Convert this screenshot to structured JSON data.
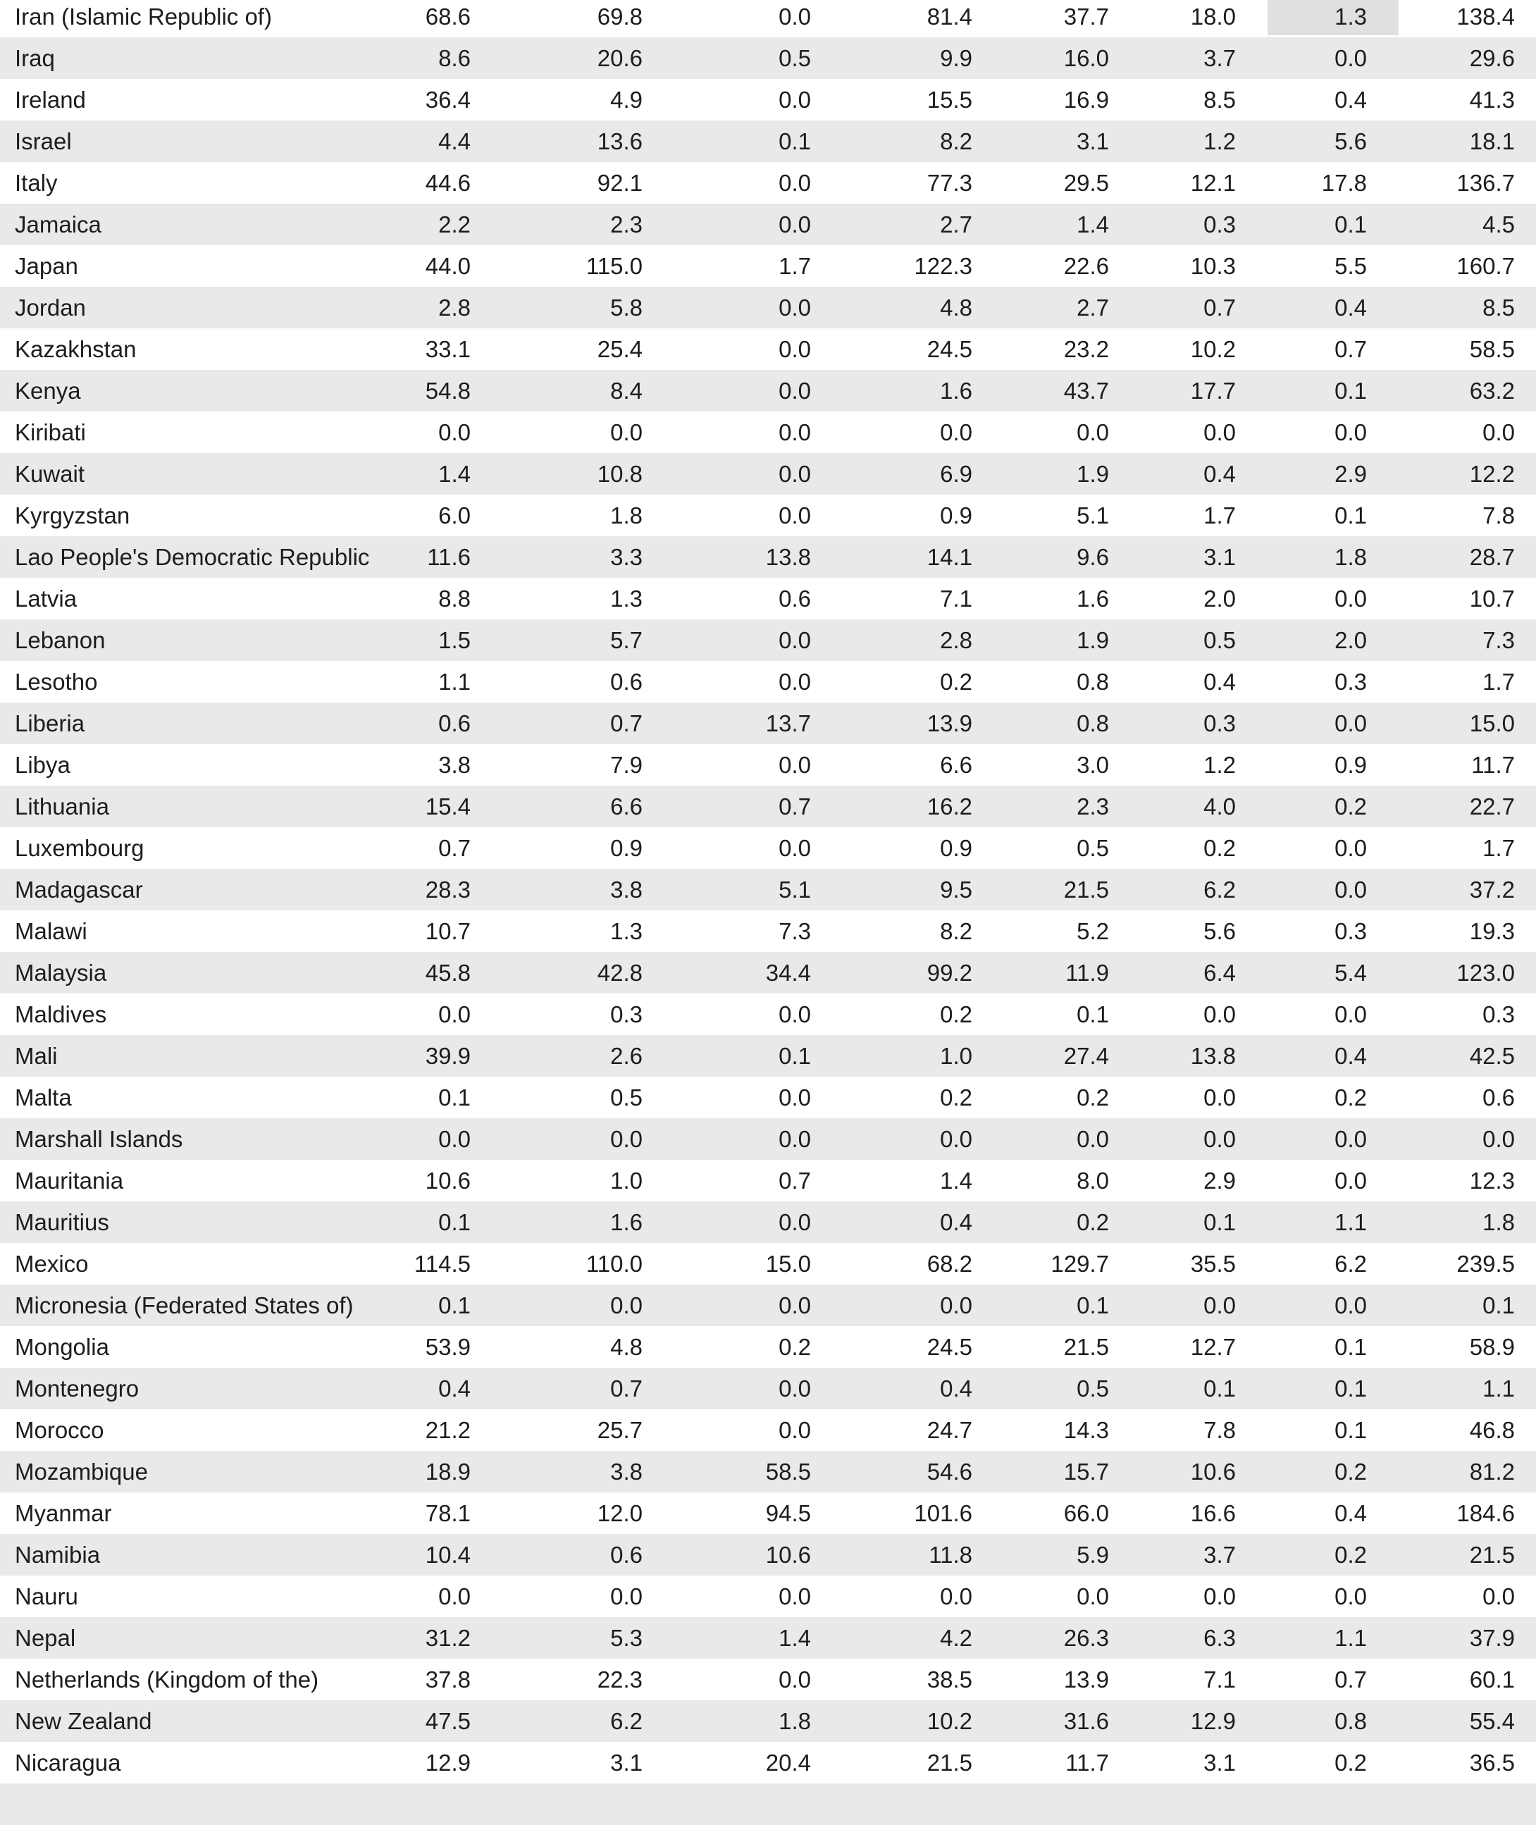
{
  "colors": {
    "row_plain": "#ffffff",
    "row_stripe": "#e9e9e9",
    "cell_highlight": "#e0e0e0",
    "text": "#1d1d1d"
  },
  "table": {
    "value_columns_count": 8,
    "highlighted_cell": {
      "row_index": 0,
      "value_col_index": 6,
      "value": "1.3"
    },
    "rows": [
      {
        "country": "Iran (Islamic Republic of)",
        "values": [
          "68.6",
          "69.8",
          "0.0",
          "81.4",
          "37.7",
          "18.0",
          "1.3",
          "138.4"
        ]
      },
      {
        "country": "Iraq",
        "values": [
          "8.6",
          "20.6",
          "0.5",
          "9.9",
          "16.0",
          "3.7",
          "0.0",
          "29.6"
        ]
      },
      {
        "country": "Ireland",
        "values": [
          "36.4",
          "4.9",
          "0.0",
          "15.5",
          "16.9",
          "8.5",
          "0.4",
          "41.3"
        ]
      },
      {
        "country": "Israel",
        "values": [
          "4.4",
          "13.6",
          "0.1",
          "8.2",
          "3.1",
          "1.2",
          "5.6",
          "18.1"
        ]
      },
      {
        "country": "Italy",
        "values": [
          "44.6",
          "92.1",
          "0.0",
          "77.3",
          "29.5",
          "12.1",
          "17.8",
          "136.7"
        ]
      },
      {
        "country": "Jamaica",
        "values": [
          "2.2",
          "2.3",
          "0.0",
          "2.7",
          "1.4",
          "0.3",
          "0.1",
          "4.5"
        ]
      },
      {
        "country": "Japan",
        "values": [
          "44.0",
          "115.0",
          "1.7",
          "122.3",
          "22.6",
          "10.3",
          "5.5",
          "160.7"
        ]
      },
      {
        "country": "Jordan",
        "values": [
          "2.8",
          "5.8",
          "0.0",
          "4.8",
          "2.7",
          "0.7",
          "0.4",
          "8.5"
        ]
      },
      {
        "country": "Kazakhstan",
        "values": [
          "33.1",
          "25.4",
          "0.0",
          "24.5",
          "23.2",
          "10.2",
          "0.7",
          "58.5"
        ]
      },
      {
        "country": "Kenya",
        "values": [
          "54.8",
          "8.4",
          "0.0",
          "1.6",
          "43.7",
          "17.7",
          "0.1",
          "63.2"
        ]
      },
      {
        "country": "Kiribati",
        "values": [
          "0.0",
          "0.0",
          "0.0",
          "0.0",
          "0.0",
          "0.0",
          "0.0",
          "0.0"
        ]
      },
      {
        "country": "Kuwait",
        "values": [
          "1.4",
          "10.8",
          "0.0",
          "6.9",
          "1.9",
          "0.4",
          "2.9",
          "12.2"
        ]
      },
      {
        "country": "Kyrgyzstan",
        "values": [
          "6.0",
          "1.8",
          "0.0",
          "0.9",
          "5.1",
          "1.7",
          "0.1",
          "7.8"
        ]
      },
      {
        "country": "Lao People's Democratic Republic",
        "values": [
          "11.6",
          "3.3",
          "13.8",
          "14.1",
          "9.6",
          "3.1",
          "1.8",
          "28.7"
        ]
      },
      {
        "country": "Latvia",
        "values": [
          "8.8",
          "1.3",
          "0.6",
          "7.1",
          "1.6",
          "2.0",
          "0.0",
          "10.7"
        ]
      },
      {
        "country": "Lebanon",
        "values": [
          "1.5",
          "5.7",
          "0.0",
          "2.8",
          "1.9",
          "0.5",
          "2.0",
          "7.3"
        ]
      },
      {
        "country": "Lesotho",
        "values": [
          "1.1",
          "0.6",
          "0.0",
          "0.2",
          "0.8",
          "0.4",
          "0.3",
          "1.7"
        ]
      },
      {
        "country": "Liberia",
        "values": [
          "0.6",
          "0.7",
          "13.7",
          "13.9",
          "0.8",
          "0.3",
          "0.0",
          "15.0"
        ]
      },
      {
        "country": "Libya",
        "values": [
          "3.8",
          "7.9",
          "0.0",
          "6.6",
          "3.0",
          "1.2",
          "0.9",
          "11.7"
        ]
      },
      {
        "country": "Lithuania",
        "values": [
          "15.4",
          "6.6",
          "0.7",
          "16.2",
          "2.3",
          "4.0",
          "0.2",
          "22.7"
        ]
      },
      {
        "country": "Luxembourg",
        "values": [
          "0.7",
          "0.9",
          "0.0",
          "0.9",
          "0.5",
          "0.2",
          "0.0",
          "1.7"
        ]
      },
      {
        "country": "Madagascar",
        "values": [
          "28.3",
          "3.8",
          "5.1",
          "9.5",
          "21.5",
          "6.2",
          "0.0",
          "37.2"
        ]
      },
      {
        "country": "Malawi",
        "values": [
          "10.7",
          "1.3",
          "7.3",
          "8.2",
          "5.2",
          "5.6",
          "0.3",
          "19.3"
        ]
      },
      {
        "country": "Malaysia",
        "values": [
          "45.8",
          "42.8",
          "34.4",
          "99.2",
          "11.9",
          "6.4",
          "5.4",
          "123.0"
        ]
      },
      {
        "country": "Maldives",
        "values": [
          "0.0",
          "0.3",
          "0.0",
          "0.2",
          "0.1",
          "0.0",
          "0.0",
          "0.3"
        ]
      },
      {
        "country": "Mali",
        "values": [
          "39.9",
          "2.6",
          "0.1",
          "1.0",
          "27.4",
          "13.8",
          "0.4",
          "42.5"
        ]
      },
      {
        "country": "Malta",
        "values": [
          "0.1",
          "0.5",
          "0.0",
          "0.2",
          "0.2",
          "0.0",
          "0.2",
          "0.6"
        ]
      },
      {
        "country": "Marshall Islands",
        "values": [
          "0.0",
          "0.0",
          "0.0",
          "0.0",
          "0.0",
          "0.0",
          "0.0",
          "0.0"
        ]
      },
      {
        "country": "Mauritania",
        "values": [
          "10.6",
          "1.0",
          "0.7",
          "1.4",
          "8.0",
          "2.9",
          "0.0",
          "12.3"
        ]
      },
      {
        "country": "Mauritius",
        "values": [
          "0.1",
          "1.6",
          "0.0",
          "0.4",
          "0.2",
          "0.1",
          "1.1",
          "1.8"
        ]
      },
      {
        "country": "Mexico",
        "values": [
          "114.5",
          "110.0",
          "15.0",
          "68.2",
          "129.7",
          "35.5",
          "6.2",
          "239.5"
        ]
      },
      {
        "country": "Micronesia (Federated States of)",
        "values": [
          "0.1",
          "0.0",
          "0.0",
          "0.0",
          "0.1",
          "0.0",
          "0.0",
          "0.1"
        ]
      },
      {
        "country": "Mongolia",
        "values": [
          "53.9",
          "4.8",
          "0.2",
          "24.5",
          "21.5",
          "12.7",
          "0.1",
          "58.9"
        ]
      },
      {
        "country": "Montenegro",
        "values": [
          "0.4",
          "0.7",
          "0.0",
          "0.4",
          "0.5",
          "0.1",
          "0.1",
          "1.1"
        ]
      },
      {
        "country": "Morocco",
        "values": [
          "21.2",
          "25.7",
          "0.0",
          "24.7",
          "14.3",
          "7.8",
          "0.1",
          "46.8"
        ]
      },
      {
        "country": "Mozambique",
        "values": [
          "18.9",
          "3.8",
          "58.5",
          "54.6",
          "15.7",
          "10.6",
          "0.2",
          "81.2"
        ]
      },
      {
        "country": "Myanmar",
        "values": [
          "78.1",
          "12.0",
          "94.5",
          "101.6",
          "66.0",
          "16.6",
          "0.4",
          "184.6"
        ]
      },
      {
        "country": "Namibia",
        "values": [
          "10.4",
          "0.6",
          "10.6",
          "11.8",
          "5.9",
          "3.7",
          "0.2",
          "21.5"
        ]
      },
      {
        "country": "Nauru",
        "values": [
          "0.0",
          "0.0",
          "0.0",
          "0.0",
          "0.0",
          "0.0",
          "0.0",
          "0.0"
        ]
      },
      {
        "country": "Nepal",
        "values": [
          "31.2",
          "5.3",
          "1.4",
          "4.2",
          "26.3",
          "6.3",
          "1.1",
          "37.9"
        ]
      },
      {
        "country": "Netherlands (Kingdom of the)",
        "values": [
          "37.8",
          "22.3",
          "0.0",
          "38.5",
          "13.9",
          "7.1",
          "0.7",
          "60.1"
        ]
      },
      {
        "country": "New Zealand",
        "values": [
          "47.5",
          "6.2",
          "1.8",
          "10.2",
          "31.6",
          "12.9",
          "0.8",
          "55.4"
        ]
      },
      {
        "country": "Nicaragua",
        "values": [
          "12.9",
          "3.1",
          "20.4",
          "21.5",
          "11.7",
          "3.1",
          "0.2",
          "36.5"
        ]
      }
    ]
  }
}
